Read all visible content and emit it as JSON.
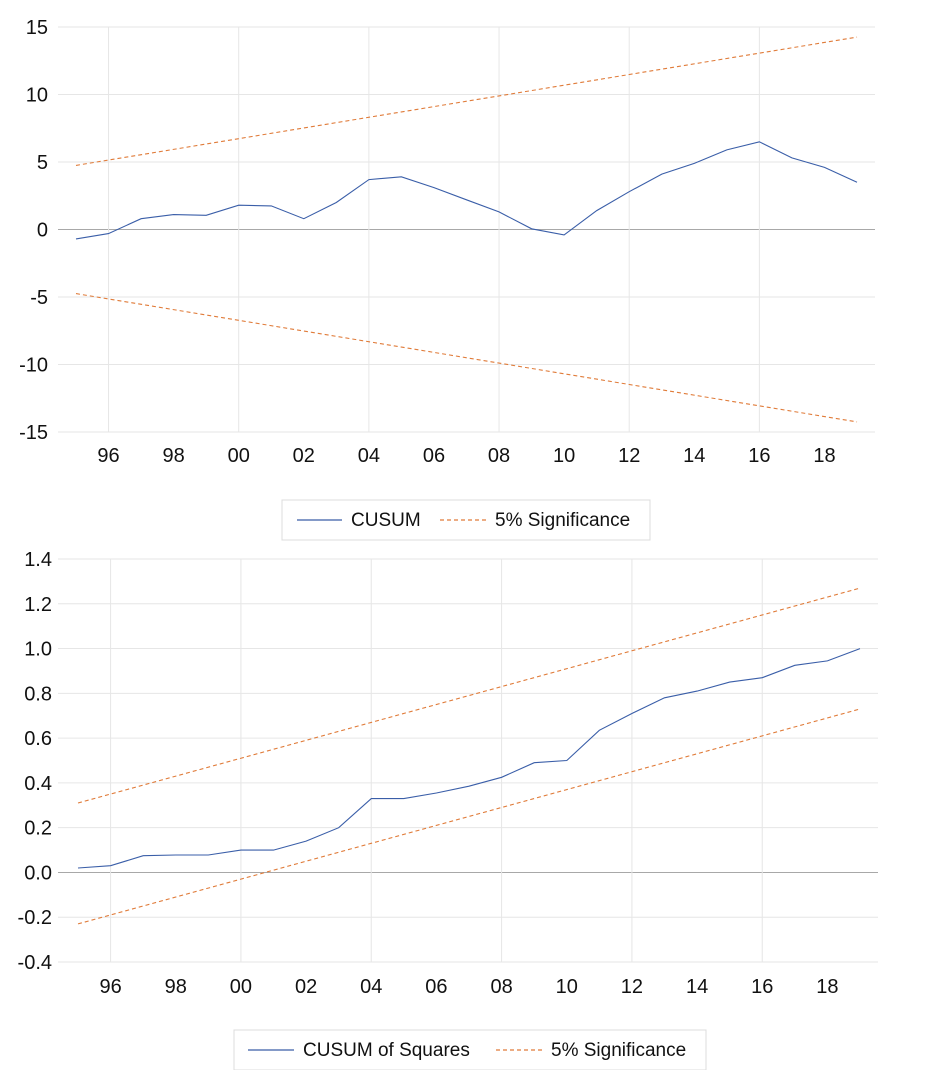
{
  "colors": {
    "cusum": "#3a5ea8",
    "significance": "#e07b39",
    "grid": "#e6e6e6",
    "zero": "#a8a8a8"
  },
  "chart_data": [
    {
      "type": "line",
      "title": "",
      "xlabel": "",
      "ylabel": "",
      "xlim": [
        1995,
        2019
      ],
      "ylim": [
        -15,
        15
      ],
      "yticks": [
        -15,
        -10,
        -5,
        0,
        5,
        10,
        15
      ],
      "ytick_labels": [
        "-15",
        "-10",
        "-5",
        "0",
        "5",
        "10",
        "15"
      ],
      "xticks": [
        1996,
        1998,
        2000,
        2002,
        2004,
        2006,
        2008,
        2010,
        2012,
        2014,
        2016,
        2018
      ],
      "xtick_labels": [
        "96",
        "98",
        "00",
        "02",
        "04",
        "06",
        "08",
        "10",
        "12",
        "14",
        "16",
        "18"
      ],
      "vgrid": [
        1996,
        2000,
        2004,
        2008,
        2012,
        2016
      ],
      "legend_position": "bottom",
      "series": [
        {
          "name": "CUSUM",
          "style": "solid",
          "x": [
            1995,
            1996,
            1997,
            1998,
            1999,
            2000,
            2001,
            2002,
            2003,
            2004,
            2005,
            2006,
            2007,
            2008,
            2009,
            2010,
            2011,
            2012,
            2013,
            2014,
            2015,
            2016,
            2017,
            2018,
            2019
          ],
          "values": [
            -0.7,
            -0.3,
            0.8,
            1.1,
            1.05,
            1.8,
            1.75,
            0.8,
            2.0,
            3.7,
            3.9,
            3.1,
            2.2,
            1.3,
            0.05,
            -0.4,
            1.4,
            2.8,
            4.1,
            4.9,
            5.9,
            6.5,
            5.3,
            4.6,
            3.5
          ]
        },
        {
          "name": "5% Significance",
          "style": "dashed",
          "x": [
            1995,
            2019
          ],
          "values": [
            4.75,
            14.25
          ]
        },
        {
          "name": "",
          "style": "dashed",
          "x": [
            1995,
            2019
          ],
          "values": [
            -4.75,
            -14.25
          ]
        }
      ]
    },
    {
      "type": "line",
      "title": "",
      "xlabel": "",
      "ylabel": "",
      "xlim": [
        1995,
        2019
      ],
      "ylim": [
        -0.4,
        1.4
      ],
      "yticks": [
        -0.4,
        -0.2,
        0.0,
        0.2,
        0.4,
        0.6,
        0.8,
        1.0,
        1.2,
        1.4
      ],
      "ytick_labels": [
        "-0.4",
        "-0.2",
        "0.0",
        "0.2",
        "0.4",
        "0.6",
        "0.8",
        "1.0",
        "1.2",
        "1.4"
      ],
      "xticks": [
        1996,
        1998,
        2000,
        2002,
        2004,
        2006,
        2008,
        2010,
        2012,
        2014,
        2016,
        2018
      ],
      "xtick_labels": [
        "96",
        "98",
        "00",
        "02",
        "04",
        "06",
        "08",
        "10",
        "12",
        "14",
        "16",
        "18"
      ],
      "vgrid": [
        1996,
        2000,
        2004,
        2008,
        2012,
        2016
      ],
      "legend_position": "bottom",
      "series": [
        {
          "name": "CUSUM of Squares",
          "style": "solid",
          "x": [
            1995,
            1996,
            1997,
            1998,
            1999,
            2000,
            2001,
            2002,
            2003,
            2004,
            2005,
            2006,
            2007,
            2008,
            2009,
            2010,
            2011,
            2012,
            2013,
            2014,
            2015,
            2016,
            2017,
            2018,
            2019
          ],
          "values": [
            0.02,
            0.03,
            0.075,
            0.078,
            0.078,
            0.1,
            0.1,
            0.14,
            0.2,
            0.33,
            0.33,
            0.355,
            0.385,
            0.425,
            0.49,
            0.5,
            0.635,
            0.71,
            0.78,
            0.81,
            0.85,
            0.87,
            0.925,
            0.945,
            1.0
          ]
        },
        {
          "name": "5% Significance",
          "style": "dashed",
          "x": [
            1995,
            2019
          ],
          "values": [
            0.31,
            1.27
          ]
        },
        {
          "name": "",
          "style": "dashed",
          "x": [
            1995,
            2019
          ],
          "values": [
            -0.23,
            0.73
          ]
        }
      ]
    }
  ]
}
